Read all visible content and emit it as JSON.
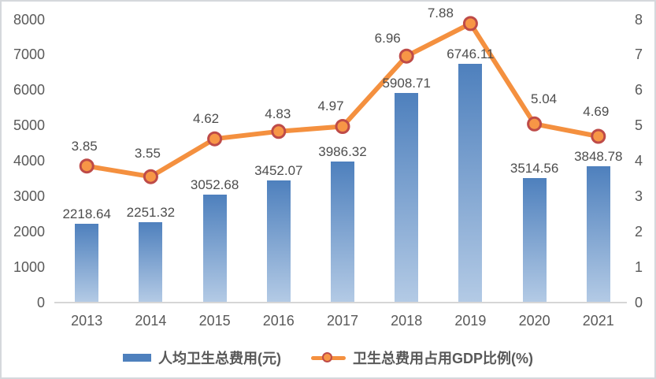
{
  "chart_data": {
    "type": "combo",
    "categories": [
      "2013",
      "2014",
      "2015",
      "2016",
      "2017",
      "2018",
      "2019",
      "2020",
      "2021"
    ],
    "series": [
      {
        "name": "人均卫生总费用(元)",
        "type": "bar",
        "axis": "left",
        "values": [
          2218.64,
          2251.32,
          3052.68,
          3452.07,
          3986.32,
          5908.71,
          6746.11,
          3514.56,
          3848.78
        ],
        "labels": [
          "2218.64",
          "2251.32",
          "3052.68",
          "3452.07",
          "3986.32",
          "5908.71",
          "6746.11",
          "3514.56",
          "3848.78"
        ]
      },
      {
        "name": "卫生总费用占用GDP比例(%)",
        "type": "line",
        "axis": "right",
        "values": [
          3.85,
          3.55,
          4.62,
          4.83,
          4.97,
          6.96,
          7.88,
          5.04,
          4.69
        ],
        "labels": [
          "3.85",
          "3.55",
          "4.62",
          "4.83",
          "4.97",
          "6.96",
          "7.88",
          "5.04",
          "4.69"
        ]
      }
    ],
    "left_axis": {
      "min": 0,
      "max": 8000,
      "step": 1000,
      "ticks": [
        "0",
        "1000",
        "2000",
        "3000",
        "4000",
        "5000",
        "6000",
        "7000",
        "8000"
      ]
    },
    "right_axis": {
      "min": 0,
      "max": 8,
      "step": 1,
      "ticks": [
        "0",
        "1",
        "2",
        "3",
        "4",
        "5",
        "6",
        "7",
        "8"
      ]
    },
    "title": "",
    "grid": false,
    "legend_position": "bottom"
  },
  "legend": {
    "items": [
      {
        "label": "人均卫生总费用(元)",
        "swatch": "bar"
      },
      {
        "label": "卫生总费用占用GDP比例(%)",
        "swatch": "line-marker"
      }
    ]
  },
  "colors": {
    "bar_top": "#4e80bd",
    "bar_bottom": "#b3cae5",
    "line": "#f4903f",
    "marker_fill": "#f79646",
    "marker_stroke": "#be4b48",
    "axis_text": "#595959",
    "data_label_text": "#4d4d4d",
    "axis_line": "#d6d6d6",
    "frame_border": "#d5d8dc",
    "background": "#ffffff"
  }
}
